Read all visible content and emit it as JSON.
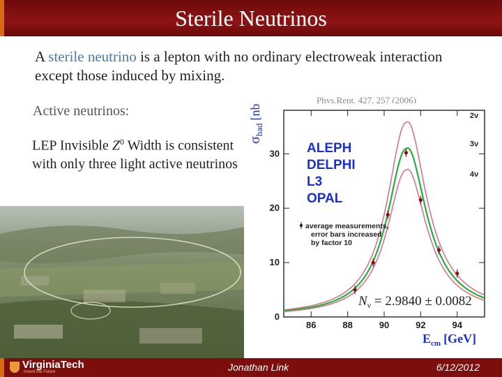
{
  "slide": {
    "title": "Sterile Neutrinos",
    "intro_before": "A ",
    "intro_highlight": "sterile neutrino",
    "intro_after": " is a lepton with no ordinary electroweak interaction except those induced by mixing.",
    "reference": "Phys.Rept. 427, 257 (2006)",
    "active_heading": "Active neutrinos:",
    "lep_before": "LEP Invisible ",
    "lep_symbol": "Z",
    "lep_superscript": "0",
    "lep_after": " Width is consistent with only three light active neutrinos"
  },
  "footer": {
    "logo_text": "VirginiaTech",
    "logo_tagline": "Invent the Future",
    "author": "Jonathan Link",
    "date": "6/12/2012"
  },
  "chart_data": {
    "type": "line",
    "xlabel": "E",
    "xlabel_sub": "cm",
    "xlabel_unit": "[GeV]",
    "ylabel": "σ",
    "ylabel_sub": "had",
    "ylabel_unit": "[nb]",
    "xlim": [
      84.5,
      95.5
    ],
    "ylim": [
      0,
      38
    ],
    "x_ticks": [
      "86",
      "88",
      "90",
      "92",
      "94"
    ],
    "y_ticks": [
      "0",
      "10",
      "20",
      "30"
    ],
    "experiments": [
      "ALEPH",
      "DELPHI",
      "L3",
      "OPAL"
    ],
    "experiment_color": "#1a2fd6",
    "note": "average measurements, error bars increased by factor 10",
    "result_text": "N",
    "result_sub": "ν",
    "result_value": " = 2.9840 ± 0.0082",
    "series": [
      {
        "name": "2ν",
        "color": "#d8728a",
        "peak": 35.7
      },
      {
        "name": "3ν",
        "color": "#22b03a",
        "peak": 30.9
      },
      {
        "name": "4ν",
        "color": "#d8728a",
        "peak": 27.0
      }
    ],
    "points": [
      {
        "x": 88.4,
        "y": 5.0
      },
      {
        "x": 89.4,
        "y": 10.0
      },
      {
        "x": 90.2,
        "y": 18.8
      },
      {
        "x": 91.2,
        "y": 30.2
      },
      {
        "x": 92.0,
        "y": 21.5
      },
      {
        "x": 93.0,
        "y": 12.3
      },
      {
        "x": 94.0,
        "y": 8.0
      }
    ]
  }
}
